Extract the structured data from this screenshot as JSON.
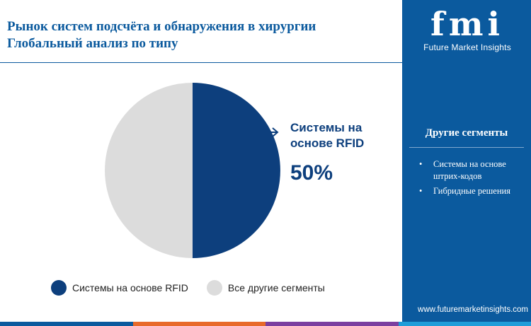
{
  "title": {
    "line1": "Рынок систем подсчёта и обнаружения в хирургии",
    "line2": "Глобальный анализ по типу"
  },
  "chart_data": {
    "type": "pie",
    "categories": [
      "Системы на основе RFID",
      "Все другие сегменты"
    ],
    "values": [
      50,
      50
    ],
    "colors": [
      "#0d3f7d",
      "#dcdcdc"
    ],
    "callout": {
      "label": "Системы на основе RFID",
      "label_line1": "Системы на",
      "label_line2": "основе RFID",
      "value": "50%"
    }
  },
  "legend": [
    {
      "label": "Системы на основе RFID",
      "color": "#0d3f7d"
    },
    {
      "label": "Все другие сегменты",
      "color": "#dcdcdc"
    }
  ],
  "sidebar": {
    "logo_text": "fmi",
    "logo_subtitle": "Future Market Insights",
    "segments_title": "Другие сегменты",
    "segments": [
      "Системы на основе штрих-кодов",
      "Гибридные решения"
    ],
    "website": "www.futuremarketinsights.com"
  },
  "colors": {
    "brand_blue": "#0b5a9e",
    "dark_blue": "#0d3f7d",
    "bottom_bar": [
      "#0b5a9e",
      "#e86a2a",
      "#7b3fa0",
      "#1f9dd9"
    ]
  }
}
